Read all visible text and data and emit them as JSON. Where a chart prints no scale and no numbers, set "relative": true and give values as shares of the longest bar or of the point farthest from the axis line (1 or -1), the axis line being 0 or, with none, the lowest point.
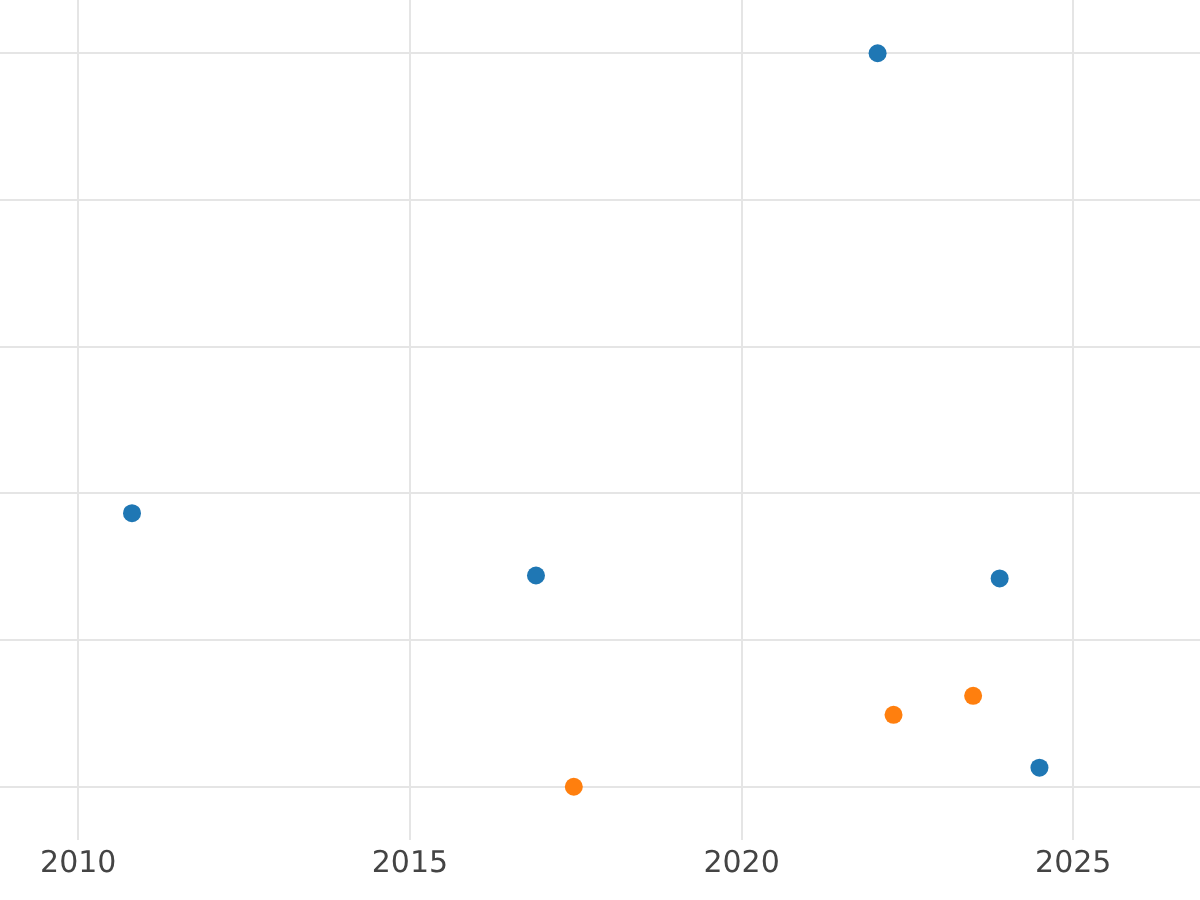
{
  "chart_data": {
    "type": "scatter",
    "relative": true,
    "xlim": [
      2008.82,
      2026.91
    ],
    "xticks": [
      2010,
      2015,
      2020,
      2025
    ],
    "grid": true,
    "marker": "circle",
    "series": [
      {
        "color": "#1f77b4",
        "x": [
          2010.81,
          2016.9,
          2022.05,
          2023.89,
          2024.49
        ],
        "values": [
          0.373,
          0.288,
          1,
          0.284,
          0.026
        ]
      },
      {
        "color": "#ff7f0e",
        "x": [
          2017.47,
          2022.29,
          2023.49
        ],
        "values": [
          0,
          0.098,
          0.124
        ]
      }
    ]
  }
}
